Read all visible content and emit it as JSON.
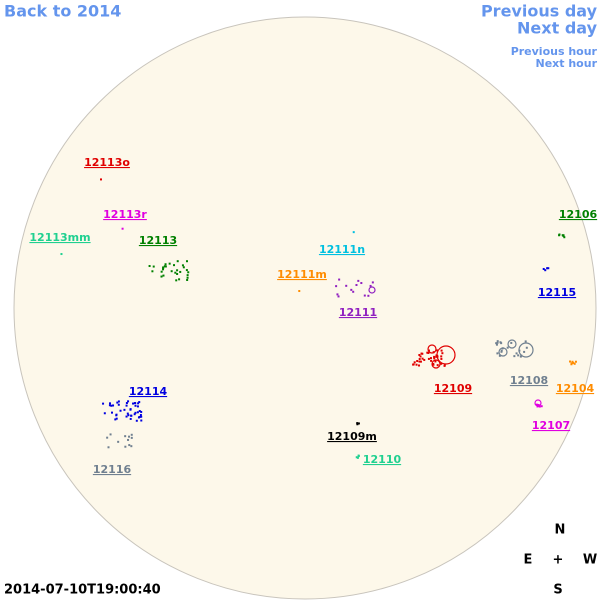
{
  "nav": {
    "back": "Back to 2014",
    "previous_day": "Previous day",
    "next_day": "Next day",
    "previous_hour": "Previous hour",
    "next_hour": "Next hour"
  },
  "timestamp": "2014-07-10T19:00:40",
  "compass": {
    "north": "N",
    "east": "E",
    "center": "+",
    "west": "W",
    "south": "S"
  },
  "regions": [
    {
      "label": "12113o",
      "color": "#e00000"
    },
    {
      "label": "12113r",
      "color": "#e000e0"
    },
    {
      "label": "12113mm",
      "color": "#20d090"
    },
    {
      "label": "12113",
      "color": "#008000"
    },
    {
      "label": "12111n",
      "color": "#00c0e0"
    },
    {
      "label": "12111m",
      "color": "#ff8c00"
    },
    {
      "label": "12111",
      "color": "#9020c0"
    },
    {
      "label": "12106",
      "color": "#008000"
    },
    {
      "label": "12115",
      "color": "#0000e0"
    },
    {
      "label": "12109",
      "color": "#e00000"
    },
    {
      "label": "12108",
      "color": "#708090"
    },
    {
      "label": "12104",
      "color": "#ff8c00"
    },
    {
      "label": "12107",
      "color": "#e000e0"
    },
    {
      "label": "12114",
      "color": "#0000e0"
    },
    {
      "label": "12116",
      "color": "#708090"
    },
    {
      "label": "12109m",
      "color": "#000000"
    },
    {
      "label": "12110",
      "color": "#20d090"
    }
  ]
}
